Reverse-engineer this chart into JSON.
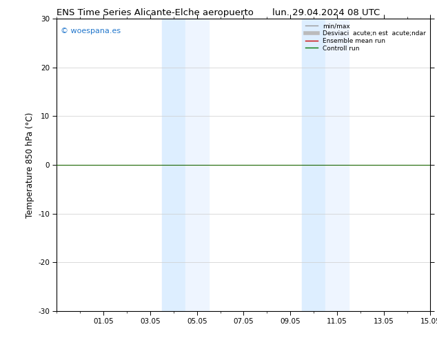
{
  "title_left": "ENS Time Series Alicante-Elche aeropuerto",
  "title_right": "lun. 29.04.2024 08 UTC",
  "ylabel": "Temperature 850 hPa (°C)",
  "ylim": [
    -30,
    30
  ],
  "yticks": [
    -30,
    -20,
    -10,
    0,
    10,
    20,
    30
  ],
  "xtick_labels": [
    "01.05",
    "03.05",
    "05.05",
    "07.05",
    "09.05",
    "11.05",
    "13.05",
    "15.05"
  ],
  "xtick_positions": [
    2,
    4,
    6,
    8,
    10,
    12,
    14,
    16
  ],
  "shaded_bands": [
    {
      "x_start": 4.5,
      "x_end": 5.5,
      "color": "#ddeeff"
    },
    {
      "x_start": 5.5,
      "x_end": 6.5,
      "color": "#eef5ff"
    },
    {
      "x_start": 10.5,
      "x_end": 11.5,
      "color": "#ddeeff"
    },
    {
      "x_start": 11.5,
      "x_end": 12.5,
      "color": "#eef5ff"
    }
  ],
  "watermark": "© woespana.es",
  "watermark_color": "#2277cc",
  "legend_entries": [
    {
      "label": "min/max",
      "color": "#999999",
      "lw": 1.0,
      "style": "line"
    },
    {
      "label": "Desviaci  acute;n est  acute;ndar",
      "color": "#bbbbbb",
      "lw": 4.0,
      "style": "line"
    },
    {
      "label": "Ensemble mean run",
      "color": "#cc0000",
      "lw": 1.0,
      "style": "line"
    },
    {
      "label": "Controll run",
      "color": "#007700",
      "lw": 1.0,
      "style": "line"
    }
  ],
  "background_color": "#ffffff",
  "plot_bg_color": "#ffffff",
  "grid_color": "#cccccc",
  "zero_line_color": "#1a6600",
  "tick_label_fontsize": 7.5,
  "title_fontsize": 9.5,
  "ylabel_fontsize": 8.5
}
